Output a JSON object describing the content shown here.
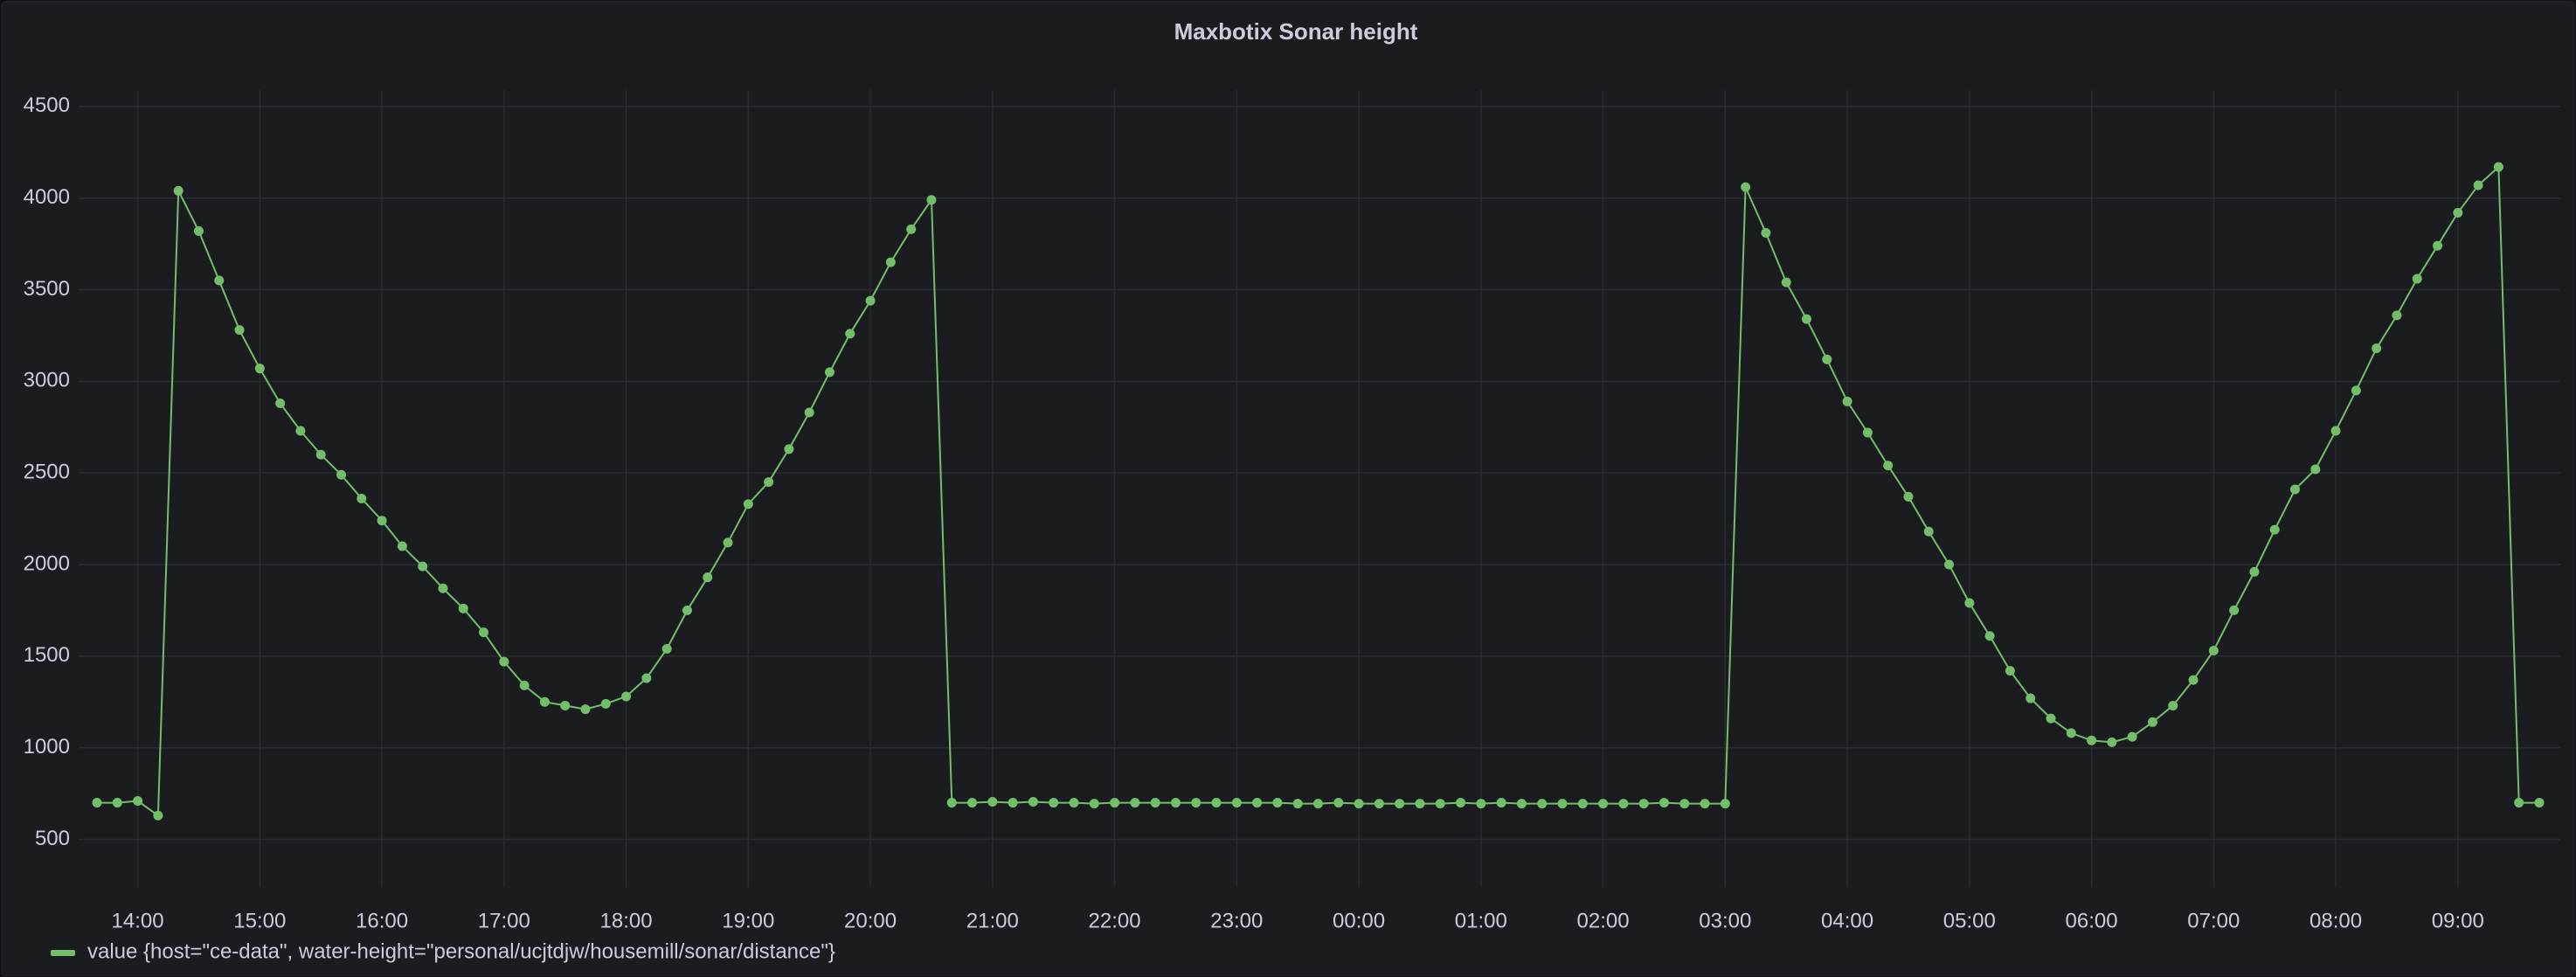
{
  "chart_data": {
    "type": "line",
    "title": "Maxbotix Sonar height",
    "categories": [
      null,
      null,
      "14:00",
      null,
      null,
      null,
      null,
      null,
      "15:00",
      null,
      null,
      null,
      null,
      null,
      "16:00",
      null,
      null,
      null,
      null,
      null,
      "17:00",
      null,
      null,
      null,
      null,
      null,
      "18:00",
      null,
      null,
      null,
      null,
      null,
      "19:00",
      null,
      null,
      null,
      null,
      null,
      "20:00",
      null,
      null,
      null,
      null,
      null,
      "21:00",
      null,
      null,
      null,
      null,
      null,
      "22:00",
      null,
      null,
      null,
      null,
      null,
      "23:00",
      null,
      null,
      null,
      null,
      null,
      "00:00",
      null,
      null,
      null,
      null,
      null,
      "01:00",
      null,
      null,
      null,
      null,
      null,
      "02:00",
      null,
      null,
      null,
      null,
      null,
      "03:00",
      null,
      null,
      null,
      null,
      null,
      "04:00",
      null,
      null,
      null,
      null,
      null,
      "05:00",
      null,
      null,
      null,
      null,
      null,
      "06:00",
      null,
      null,
      null,
      null,
      null,
      "07:00",
      null,
      null,
      null,
      null,
      null,
      "08:00",
      null,
      null,
      null,
      null,
      null,
      "09:00",
      null,
      null,
      null,
      null
    ],
    "series": [
      {
        "name": "value {host=\"ce-data\", water-height=\"personal/ucjtdjw/housemill/sonar/distance\"}",
        "color": "#73bf69",
        "values": [
          700,
          700,
          710,
          630,
          4040,
          3820,
          3550,
          3280,
          3070,
          2880,
          2730,
          2600,
          2490,
          2360,
          2240,
          2100,
          1990,
          1870,
          1760,
          1630,
          1470,
          1340,
          1250,
          1230,
          1210,
          1240,
          1280,
          1380,
          1540,
          1750,
          1930,
          2120,
          2330,
          2450,
          2630,
          2830,
          3050,
          3260,
          3440,
          3650,
          3830,
          3990,
          700,
          700,
          705,
          700,
          705,
          700,
          700,
          695,
          700,
          700,
          700,
          700,
          700,
          700,
          700,
          700,
          700,
          695,
          695,
          700,
          695,
          695,
          695,
          695,
          695,
          700,
          695,
          700,
          695,
          695,
          695,
          695,
          695,
          695,
          695,
          700,
          695,
          695,
          695,
          4060,
          3810,
          3540,
          3340,
          3120,
          2890,
          2720,
          2540,
          2370,
          2180,
          2000,
          1790,
          1610,
          1420,
          1270,
          1160,
          1080,
          1040,
          1030,
          1060,
          1140,
          1230,
          1370,
          1530,
          1750,
          1960,
          2190,
          2410,
          2520,
          2730,
          2950,
          3180,
          3360,
          3560,
          3740,
          3920,
          4070,
          4170,
          700,
          700
        ]
      }
    ],
    "ylim": [
      240,
      4590
    ],
    "yticks": [
      500,
      1000,
      1500,
      2000,
      2500,
      3000,
      3500,
      4000,
      4500
    ],
    "grid": true,
    "legend": "bottom-left"
  }
}
